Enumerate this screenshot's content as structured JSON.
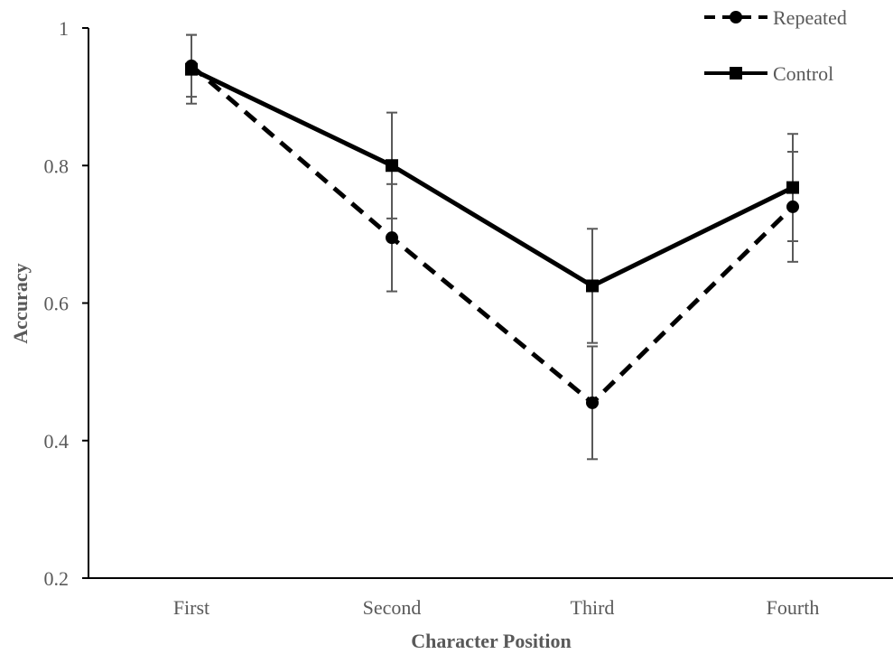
{
  "chart_data": {
    "type": "line",
    "categories": [
      "First",
      "Second",
      "Third",
      "Fourth"
    ],
    "xlabel": "Character Position",
    "ylabel": "Accuracy",
    "ylim": [
      0.2,
      1
    ],
    "yticks": [
      0.2,
      0.4,
      0.6,
      0.8,
      1
    ],
    "ytick_labels": [
      "0.2",
      "0.4",
      "0.6",
      "0.8",
      "1"
    ],
    "grid": false,
    "legend_position": "top-right",
    "series": [
      {
        "name": "Repeated",
        "line_style": "dashed",
        "marker": "circle",
        "color": "#000000",
        "values": [
          0.945,
          0.695,
          0.455,
          0.74
        ],
        "error": [
          0.045,
          0.078,
          0.082,
          0.08
        ]
      },
      {
        "name": "Control",
        "line_style": "solid",
        "marker": "square",
        "color": "#000000",
        "values": [
          0.94,
          0.8,
          0.625,
          0.768
        ],
        "error": [
          0.05,
          0.077,
          0.083,
          0.078
        ]
      }
    ]
  }
}
